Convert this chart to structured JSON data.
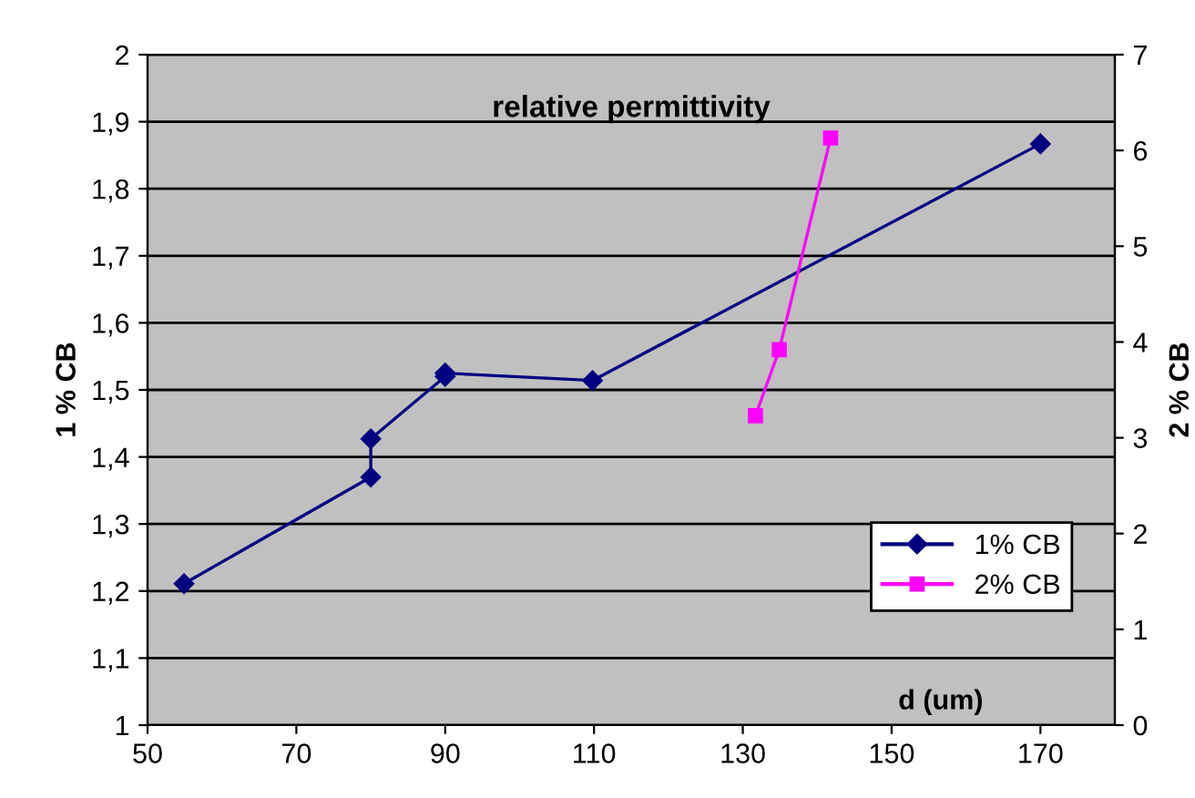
{
  "chart_data": {
    "type": "line",
    "title": "relative permittivity",
    "xlabel": "d (um)",
    "ylabel": "1 % CB",
    "y2label": "2 % CB",
    "series": [
      {
        "name": "1% CB",
        "color": "#000080",
        "marker": "diamond",
        "x": [
          54.9,
          80.0,
          80.0,
          90.0,
          90.0,
          109.8,
          170.0
        ],
        "values": [
          1.211,
          1.37,
          1.427,
          1.52,
          1.525,
          1.514,
          1.867
        ]
      },
      {
        "name": "2% CB",
        "color": "#ff00ff",
        "marker": "square",
        "axis": "y2",
        "x": [
          131.7,
          134.9,
          141.8
        ],
        "values": [
          3.23,
          3.92,
          6.13
        ]
      }
    ],
    "xlim": [
      50,
      180
    ],
    "xticks": [
      50,
      70,
      90,
      110,
      130,
      150,
      170
    ],
    "ylim": [
      1,
      2
    ],
    "yticks": [
      1,
      {
        "value": 1.1,
        "label": "1,1"
      },
      {
        "value": 1.2,
        "label": "1,2"
      },
      {
        "value": 1.3,
        "label": "1,3"
      },
      {
        "value": 1.4,
        "label": "1,4"
      },
      {
        "value": 1.5,
        "label": "1,5"
      },
      {
        "value": 1.6,
        "label": "1,6"
      },
      {
        "value": 1.7,
        "label": "1,7"
      },
      {
        "value": 1.8,
        "label": "1,8"
      },
      {
        "value": 1.9,
        "label": "1,9"
      },
      2
    ],
    "y2lim": [
      0,
      7
    ],
    "y2ticks": [
      0,
      1,
      2,
      3,
      4,
      5,
      6,
      7
    ],
    "grid": "y",
    "legend": "bottom right",
    "line_style": "solid"
  }
}
